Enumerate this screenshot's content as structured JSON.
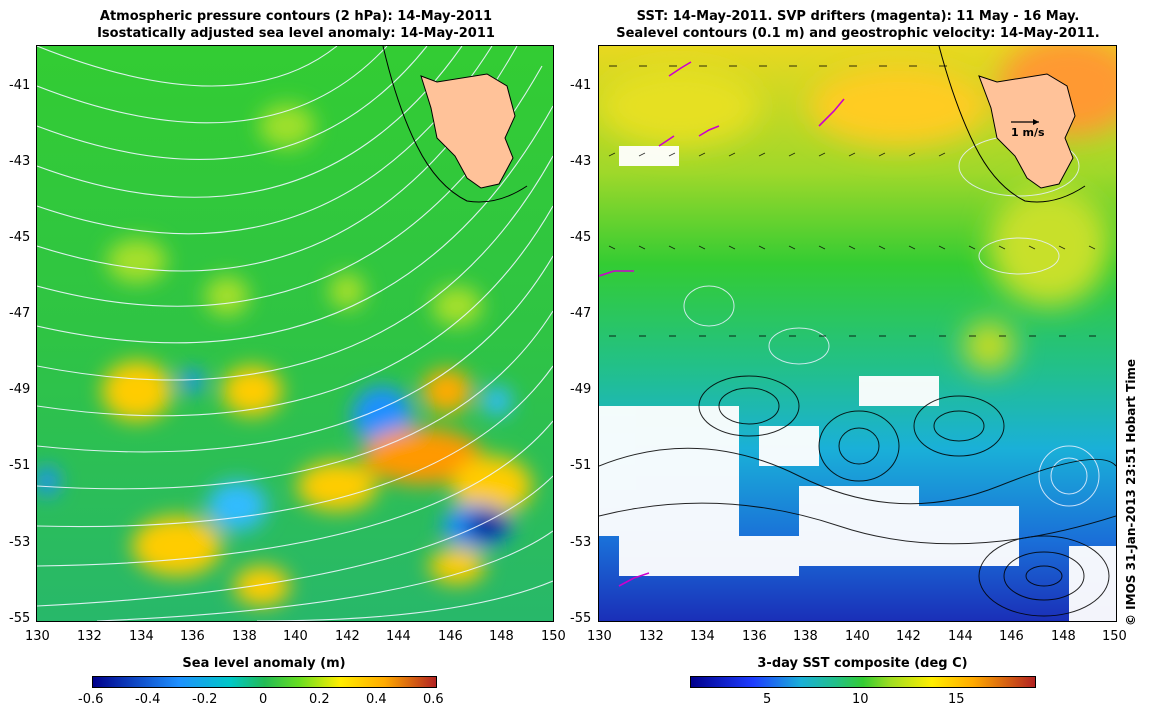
{
  "left_panel": {
    "title_line1": "Atmospheric pressure contours (2 hPa): 14-May-2011",
    "title_line2": "Isostatically adjusted sea level anomaly: 14-May-2011",
    "colorbar_title": "Sea level anomaly (m)",
    "colorbar_ticks": [
      "-0.6",
      "-0.4",
      "-0.2",
      "0",
      "0.2",
      "0.4",
      "0.6"
    ],
    "colors": {
      "deep": "#00008b",
      "low": "#1e90ff",
      "mid": "#22bb55",
      "zero": "#33cc33",
      "high": "#ffcc00",
      "peak": "#b22222"
    }
  },
  "right_panel": {
    "title_line1": "SST: 14-May-2011. SVP drifters (magenta): 11 May - 16 May.",
    "title_line2": "Sealevel contours (0.1 m) and geostrophic velocity: 14-May-2011.",
    "colorbar_title": "3-day SST composite (deg C)",
    "colorbar_ticks": [
      "5",
      "10",
      "15"
    ],
    "scale_label": "1 m/s",
    "colors": {
      "drifters": "#cc00cc",
      "land": "#ffc299"
    }
  },
  "axes": {
    "lat_ticks": [
      "-41",
      "-43",
      "-45",
      "-47",
      "-49",
      "-51",
      "-53",
      "-55"
    ],
    "lon_ticks": [
      "130",
      "132",
      "134",
      "136",
      "138",
      "140",
      "142",
      "144",
      "146",
      "148",
      "150"
    ]
  },
  "credit": "© IMOS 31-Jan-2013 23:51 Hobart Time"
}
